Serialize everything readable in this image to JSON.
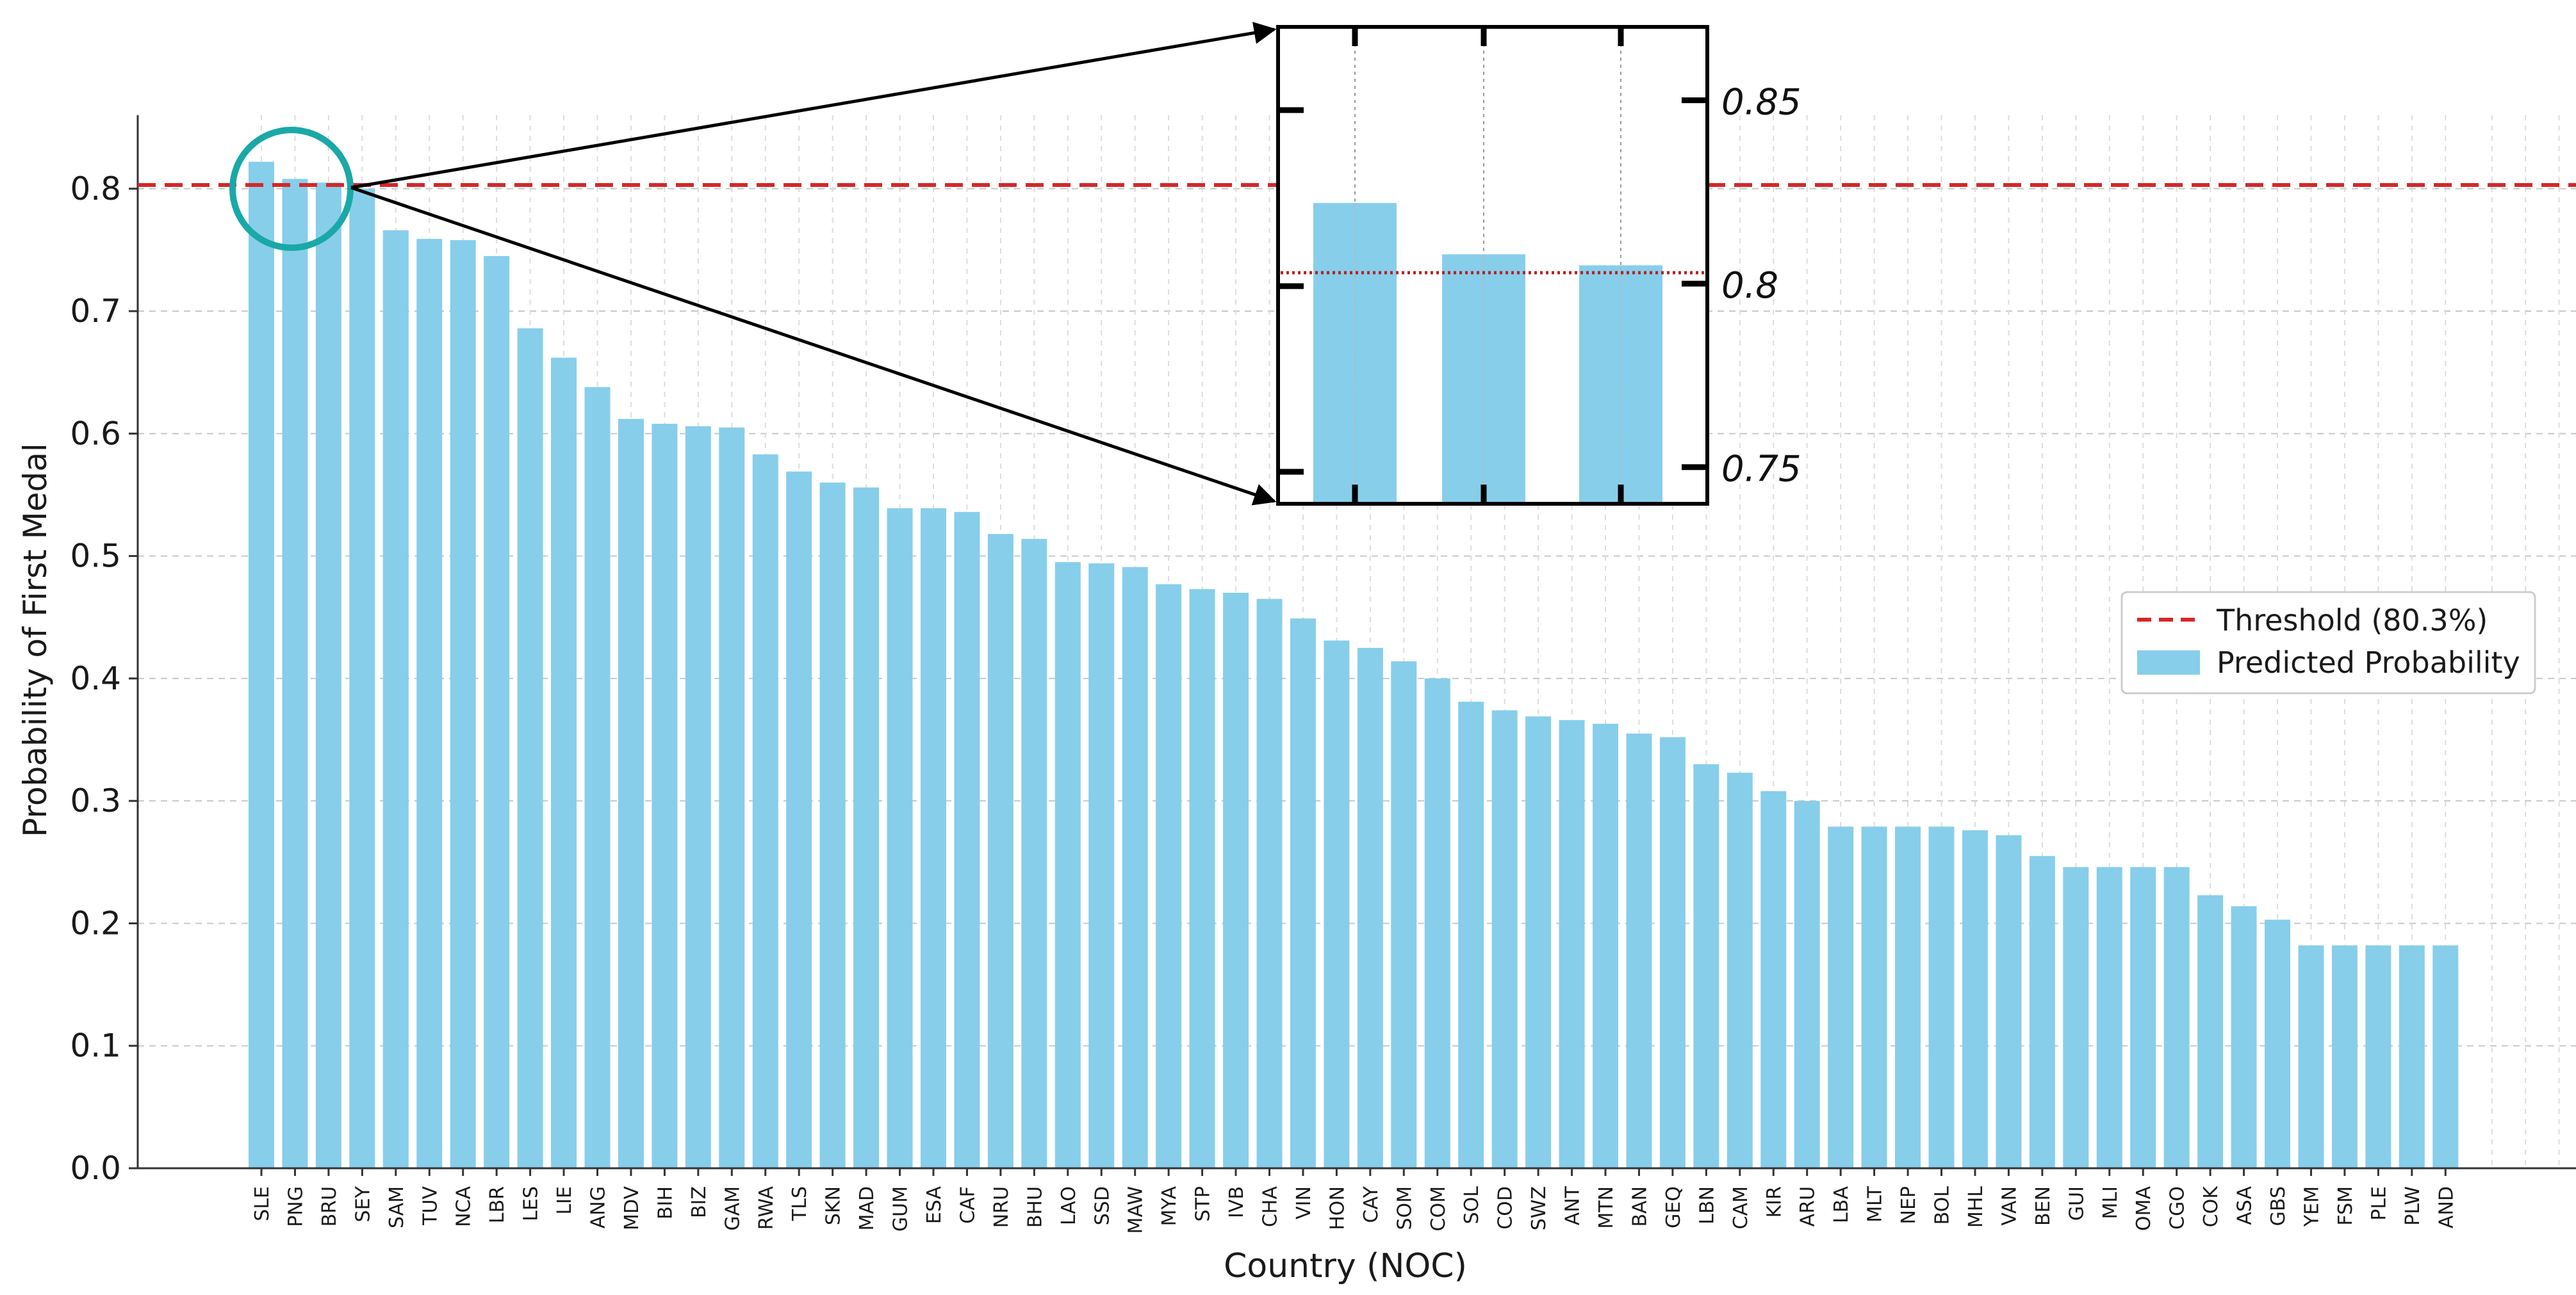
{
  "chart_data": {
    "type": "bar",
    "title": "",
    "xlabel": "Country (NOC)",
    "ylabel": "Probability of First Medal",
    "ylim": [
      0,
      0.86
    ],
    "yticks": [
      "0.0",
      "0.1",
      "0.2",
      "0.3",
      "0.4",
      "0.5",
      "0.6",
      "0.7",
      "0.8"
    ],
    "categories": [
      "SLE",
      "PNG",
      "BRU",
      "SEY",
      "SAM",
      "TUV",
      "NCA",
      "LBR",
      "LES",
      "LIE",
      "ANG",
      "MDV",
      "BIH",
      "BIZ",
      "GAM",
      "RWA",
      "TLS",
      "SKN",
      "MAD",
      "GUM",
      "ESA",
      "CAF",
      "NRU",
      "BHU",
      "LAO",
      "SSD",
      "MAW",
      "MYA",
      "STP",
      "IVB",
      "CHA",
      "VIN",
      "HON",
      "CAY",
      "SOM",
      "COM",
      "SOL",
      "COD",
      "SWZ",
      "ANT",
      "MTN",
      "BAN",
      "GEQ",
      "LBN",
      "CAM",
      "KIR",
      "ARU",
      "LBA",
      "MLT",
      "NEP",
      "BOL",
      "MHL",
      "VAN",
      "BEN",
      "GUI",
      "MLI",
      "OMA",
      "CGO",
      "COK",
      "ASA",
      "GBS",
      "YEM",
      "FSM",
      "PLE",
      "PLW",
      "AND"
    ],
    "series": [
      {
        "name": "Predicted Probability",
        "color": "#87CEEB",
        "values": [
          0.822,
          0.808,
          0.805,
          0.8,
          0.766,
          0.759,
          0.758,
          0.745,
          0.686,
          0.662,
          0.638,
          0.612,
          0.608,
          0.606,
          0.605,
          0.583,
          0.569,
          0.56,
          0.556,
          0.539,
          0.539,
          0.536,
          0.518,
          0.514,
          0.495,
          0.494,
          0.491,
          0.477,
          0.473,
          0.47,
          0.465,
          0.449,
          0.431,
          0.425,
          0.414,
          0.4,
          0.381,
          0.374,
          0.369,
          0.366,
          0.363,
          0.355,
          0.352,
          0.33,
          0.323,
          0.308,
          0.3,
          0.279,
          0.279,
          0.279,
          0.279,
          0.276,
          0.272,
          0.255,
          0.246,
          0.246,
          0.246,
          0.246,
          0.223,
          0.214,
          0.203,
          0.182,
          0.182,
          0.182,
          0.182,
          0.182
        ]
      }
    ],
    "threshold": {
      "value": 0.803,
      "color": "#d62728",
      "label": "Threshold (80.3%)"
    },
    "legend": {
      "position": "right",
      "entries": [
        "Threshold (80.3%)",
        "Predicted Probability"
      ]
    },
    "zoom_inset": {
      "categories": [
        "SLE",
        "PNG",
        "BRU"
      ],
      "ylim": [
        0.74,
        0.87
      ],
      "ytick_labels": [
        "0.85",
        "0.8",
        "0.75"
      ],
      "ytick_values": [
        0.85,
        0.8,
        0.75
      ],
      "highlight_color": "#1aa8a8"
    },
    "grid": true
  }
}
